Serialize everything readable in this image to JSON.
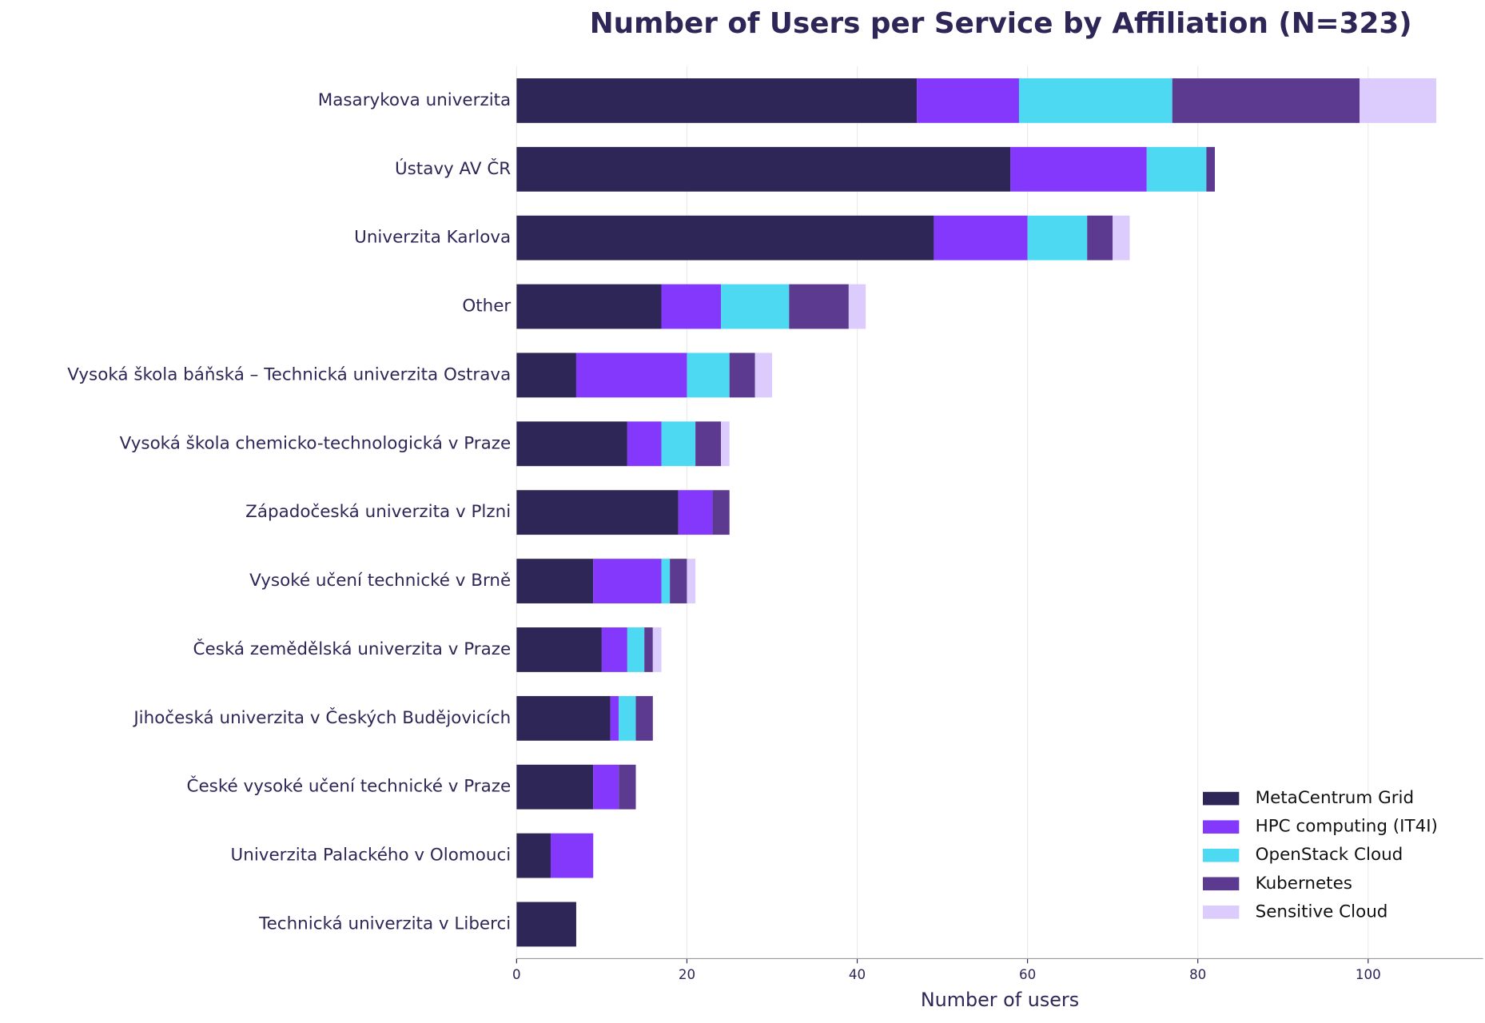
{
  "chart_data": {
    "type": "stacked-barh",
    "title": "Number of Users per Service by Affiliation (N=323)",
    "x_label": "Number of users",
    "categories": [
      "Masarykova univerzita",
      "Ústavy AV ČR",
      "Univerzita Karlova",
      "Other",
      "Vysoká škola báňská – Technická univerzita Ostrava",
      "Vysoká škola chemicko-technologická v Praze",
      "Západočeská univerzita v Plzni",
      "Vysoké učení technické v Brně",
      "Česká zemědělská univerzita v Praze",
      "Jihočeská univerzita v Českých Budějovicích",
      "České vysoké učení technické v Praze",
      "Univerzita Palackého v Olomouci",
      "Technická univerzita v Liberci"
    ],
    "series": [
      {
        "name": "MetaCentrum Grid",
        "color": "#2e2657",
        "values": [
          47,
          58,
          49,
          17,
          7,
          13,
          19,
          9,
          10,
          11,
          9,
          4,
          7
        ]
      },
      {
        "name": "HPC computing (IT4I)",
        "color": "#8338fb",
        "values": [
          12,
          16,
          11,
          7,
          13,
          4,
          4,
          8,
          3,
          1,
          3,
          5,
          0
        ]
      },
      {
        "name": "OpenStack Cloud",
        "color": "#4dd9f2",
        "values": [
          18,
          7,
          7,
          8,
          5,
          4,
          0,
          1,
          2,
          2,
          0,
          0,
          0
        ]
      },
      {
        "name": "Kubernetes",
        "color": "#5c3a8f",
        "values": [
          22,
          1,
          3,
          7,
          3,
          3,
          2,
          2,
          1,
          2,
          2,
          0,
          0
        ]
      },
      {
        "name": "Sensitive Cloud",
        "color": "#dccbfd",
        "values": [
          9,
          0,
          2,
          2,
          2,
          1,
          0,
          1,
          1,
          0,
          0,
          0,
          0
        ]
      }
    ],
    "xlim": [
      0,
      113.5
    ],
    "xticks": [
      0,
      20,
      40,
      60,
      80,
      100
    ],
    "grid": true,
    "legend": "lower right"
  }
}
